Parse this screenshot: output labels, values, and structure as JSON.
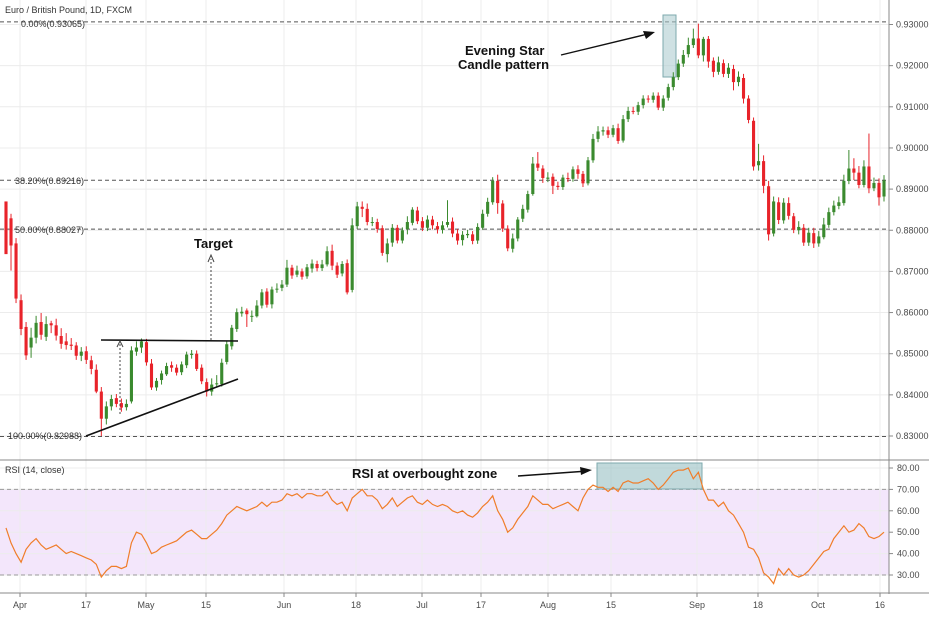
{
  "chart_data": [
    {
      "type": "candlestick",
      "title": "Euro / British Pound, 1D, FXCM",
      "x_tick_labels": [
        "Apr",
        "17",
        "May",
        "15",
        "Jun",
        "18",
        "Jul",
        "17",
        "Aug",
        "15",
        "Sep",
        "18",
        "Oct",
        "16"
      ],
      "y_tick_labels": [
        "0.93000",
        "0.92000",
        "0.91000",
        "0.90000",
        "0.89000",
        "0.88000",
        "0.87000",
        "0.86000",
        "0.85000",
        "0.84000",
        "0.83000"
      ],
      "ylim": [
        0.8272,
        0.9345
      ],
      "grid": true,
      "up_color": "#3a8a2e",
      "down_color": "#e8232a",
      "fib_levels": [
        {
          "label": "0.00%(0.93065)",
          "value": 0.93065
        },
        {
          "label": "38.20%(0.89216)",
          "value": 0.89216
        },
        {
          "label": "50.00%(0.88027)",
          "value": 0.88027
        },
        {
          "label": "100.00%(0.82988)",
          "value": 0.82988
        }
      ],
      "annotations": {
        "evening_star": "Evening Star\nCandle pattern",
        "target": "Target"
      },
      "candles": [
        [
          0.887,
          0.8742,
          0.887,
          0.8818
        ],
        [
          0.8829,
          0.8763,
          0.884,
          0.8702
        ],
        [
          0.8768,
          0.8634,
          0.8781,
          0.8623
        ],
        [
          0.863,
          0.856,
          0.8644,
          0.8545
        ],
        [
          0.8565,
          0.8496,
          0.8577,
          0.8485
        ],
        [
          0.8515,
          0.8539,
          0.8563,
          0.849
        ],
        [
          0.8539,
          0.8575,
          0.8592,
          0.8525
        ],
        [
          0.8577,
          0.8546,
          0.8599,
          0.8534
        ],
        [
          0.8541,
          0.8572,
          0.8591,
          0.8531
        ],
        [
          0.8574,
          0.8569,
          0.858,
          0.855
        ],
        [
          0.8569,
          0.8544,
          0.8585,
          0.8532
        ],
        [
          0.8543,
          0.8524,
          0.8562,
          0.8512
        ],
        [
          0.853,
          0.8521,
          0.855,
          0.851
        ],
        [
          0.8522,
          0.8519,
          0.8538,
          0.8509
        ],
        [
          0.852,
          0.8495,
          0.8528,
          0.8485
        ],
        [
          0.8495,
          0.8505,
          0.8516,
          0.8482
        ],
        [
          0.8506,
          0.8485,
          0.8518,
          0.8475
        ],
        [
          0.8484,
          0.8463,
          0.8495,
          0.845
        ],
        [
          0.8461,
          0.8408,
          0.8474,
          0.8404
        ],
        [
          0.8408,
          0.8342,
          0.8419,
          0.83
        ],
        [
          0.8342,
          0.8372,
          0.8384,
          0.8328
        ],
        [
          0.8372,
          0.839,
          0.84,
          0.8362
        ],
        [
          0.8392,
          0.8378,
          0.8402,
          0.837
        ],
        [
          0.838,
          0.8369,
          0.8391,
          0.8359
        ],
        [
          0.837,
          0.8378,
          0.8389,
          0.8362
        ],
        [
          0.8384,
          0.8508,
          0.8518,
          0.8379
        ],
        [
          0.8505,
          0.8515,
          0.853,
          0.8495
        ],
        [
          0.8515,
          0.853,
          0.8537,
          0.8502
        ],
        [
          0.8528,
          0.8479,
          0.8536,
          0.8471
        ],
        [
          0.8476,
          0.8418,
          0.8487,
          0.8412
        ],
        [
          0.8418,
          0.8434,
          0.8441,
          0.841
        ],
        [
          0.8436,
          0.8452,
          0.8459,
          0.8425
        ],
        [
          0.845,
          0.847,
          0.8478,
          0.8446
        ],
        [
          0.8472,
          0.8466,
          0.8481,
          0.8456
        ],
        [
          0.8466,
          0.8454,
          0.8474,
          0.8447
        ],
        [
          0.8455,
          0.8474,
          0.8481,
          0.8448
        ],
        [
          0.8472,
          0.8498,
          0.8505,
          0.8465
        ],
        [
          0.8497,
          0.85,
          0.8509,
          0.8488
        ],
        [
          0.85,
          0.8463,
          0.8508,
          0.8458
        ],
        [
          0.8466,
          0.8433,
          0.8474,
          0.8426
        ],
        [
          0.8431,
          0.8408,
          0.844,
          0.8396
        ],
        [
          0.8408,
          0.8425,
          0.844,
          0.8398
        ],
        [
          0.8426,
          0.8428,
          0.8448,
          0.842
        ],
        [
          0.8426,
          0.8478,
          0.8488,
          0.842
        ],
        [
          0.848,
          0.8523,
          0.853,
          0.8474
        ],
        [
          0.8518,
          0.8563,
          0.857,
          0.851
        ],
        [
          0.856,
          0.8601,
          0.861,
          0.8553
        ],
        [
          0.8598,
          0.8602,
          0.8614,
          0.859
        ],
        [
          0.8605,
          0.8596,
          0.861,
          0.8565
        ],
        [
          0.8592,
          0.8592,
          0.8605,
          0.8577
        ],
        [
          0.8591,
          0.8617,
          0.863,
          0.8588
        ],
        [
          0.8617,
          0.8649,
          0.8657,
          0.861
        ],
        [
          0.8651,
          0.8619,
          0.8659,
          0.8612
        ],
        [
          0.862,
          0.8656,
          0.8663,
          0.861
        ],
        [
          0.8656,
          0.8658,
          0.8671,
          0.8648
        ],
        [
          0.866,
          0.8668,
          0.8679,
          0.8652
        ],
        [
          0.8668,
          0.8709,
          0.8728,
          0.8662
        ],
        [
          0.8709,
          0.869,
          0.8716,
          0.8682
        ],
        [
          0.8692,
          0.8702,
          0.8714,
          0.8686
        ],
        [
          0.87,
          0.8687,
          0.8707,
          0.868
        ],
        [
          0.8688,
          0.871,
          0.8718,
          0.8682
        ],
        [
          0.8707,
          0.8719,
          0.8729,
          0.8697
        ],
        [
          0.8718,
          0.8708,
          0.8726,
          0.87
        ],
        [
          0.8708,
          0.8717,
          0.8728,
          0.8701
        ],
        [
          0.8717,
          0.8749,
          0.8761,
          0.8712
        ],
        [
          0.875,
          0.8714,
          0.8765,
          0.8703
        ],
        [
          0.8714,
          0.8692,
          0.8722,
          0.8684
        ],
        [
          0.8695,
          0.8718,
          0.8725,
          0.8688
        ],
        [
          0.872,
          0.8649,
          0.8729,
          0.8644
        ],
        [
          0.8655,
          0.8812,
          0.8829,
          0.8649
        ],
        [
          0.881,
          0.8858,
          0.8869,
          0.8803
        ],
        [
          0.8857,
          0.8852,
          0.887,
          0.8832
        ],
        [
          0.8852,
          0.882,
          0.8865,
          0.8812
        ],
        [
          0.8818,
          0.882,
          0.8832,
          0.881
        ],
        [
          0.882,
          0.8803,
          0.8828,
          0.8794
        ],
        [
          0.8805,
          0.8745,
          0.8812,
          0.8738
        ],
        [
          0.8742,
          0.8768,
          0.878,
          0.8722
        ],
        [
          0.877,
          0.8806,
          0.8815,
          0.876
        ],
        [
          0.8806,
          0.8775,
          0.8813,
          0.8768
        ],
        [
          0.8775,
          0.88,
          0.8807,
          0.8768
        ],
        [
          0.8803,
          0.882,
          0.8834,
          0.879
        ],
        [
          0.8818,
          0.885,
          0.8856,
          0.8812
        ],
        [
          0.8848,
          0.8822,
          0.8857,
          0.8815
        ],
        [
          0.8822,
          0.8806,
          0.8832,
          0.8798
        ],
        [
          0.8806,
          0.8826,
          0.8836,
          0.8798
        ],
        [
          0.8826,
          0.8812,
          0.8835,
          0.8802
        ],
        [
          0.881,
          0.8802,
          0.882,
          0.8792
        ],
        [
          0.8801,
          0.8812,
          0.8822,
          0.8792
        ],
        [
          0.8813,
          0.882,
          0.8873,
          0.8807
        ],
        [
          0.8821,
          0.8792,
          0.8831,
          0.8783
        ],
        [
          0.8792,
          0.8775,
          0.8803,
          0.8765
        ],
        [
          0.8776,
          0.8789,
          0.8798,
          0.8763
        ],
        [
          0.8788,
          0.8791,
          0.8801,
          0.8781
        ],
        [
          0.879,
          0.8774,
          0.8798,
          0.8766
        ],
        [
          0.8775,
          0.8808,
          0.8817,
          0.8767
        ],
        [
          0.8806,
          0.884,
          0.885,
          0.8801
        ],
        [
          0.884,
          0.8869,
          0.8879,
          0.8833
        ],
        [
          0.8868,
          0.892,
          0.8929,
          0.8862
        ],
        [
          0.892,
          0.8866,
          0.8935,
          0.884
        ],
        [
          0.8865,
          0.8804,
          0.8873,
          0.8796
        ],
        [
          0.8804,
          0.8756,
          0.8812,
          0.8749
        ],
        [
          0.8755,
          0.878,
          0.8792,
          0.8746
        ],
        [
          0.878,
          0.8826,
          0.8832,
          0.8773
        ],
        [
          0.8828,
          0.8852,
          0.8862,
          0.882
        ],
        [
          0.885,
          0.8888,
          0.8896,
          0.8843
        ],
        [
          0.8888,
          0.8962,
          0.8978,
          0.8884
        ],
        [
          0.8962,
          0.8952,
          0.899,
          0.8944
        ],
        [
          0.895,
          0.8927,
          0.8958,
          0.8915
        ],
        [
          0.8925,
          0.8928,
          0.8941,
          0.8917
        ],
        [
          0.893,
          0.8908,
          0.8938,
          0.8888
        ],
        [
          0.8908,
          0.8905,
          0.8918,
          0.8898
        ],
        [
          0.8905,
          0.8928,
          0.8935,
          0.8898
        ],
        [
          0.8927,
          0.8925,
          0.894,
          0.8917
        ],
        [
          0.8925,
          0.8948,
          0.8955,
          0.8918
        ],
        [
          0.8948,
          0.8937,
          0.8958,
          0.8925
        ],
        [
          0.8937,
          0.8914,
          0.8944,
          0.8905
        ],
        [
          0.8914,
          0.897,
          0.8978,
          0.8909
        ],
        [
          0.897,
          0.9022,
          0.9034,
          0.8964
        ],
        [
          0.9022,
          0.904,
          0.9053,
          0.9014
        ],
        [
          0.904,
          0.9043,
          0.9052,
          0.903
        ],
        [
          0.9043,
          0.9032,
          0.9052,
          0.9024
        ],
        [
          0.9032,
          0.9048,
          0.9056,
          0.9026
        ],
        [
          0.9048,
          0.9017,
          0.9059,
          0.901
        ],
        [
          0.9018,
          0.907,
          0.908,
          0.9013
        ],
        [
          0.907,
          0.909,
          0.91,
          0.9063
        ],
        [
          0.909,
          0.9088,
          0.91,
          0.9082
        ],
        [
          0.9088,
          0.9104,
          0.9112,
          0.908
        ],
        [
          0.9104,
          0.912,
          0.9128,
          0.9096
        ],
        [
          0.912,
          0.9118,
          0.9128,
          0.911
        ],
        [
          0.9117,
          0.9127,
          0.9135,
          0.911
        ],
        [
          0.9127,
          0.9098,
          0.9135,
          0.9092
        ],
        [
          0.9098,
          0.912,
          0.9128,
          0.909
        ],
        [
          0.9122,
          0.9148,
          0.9156,
          0.9115
        ],
        [
          0.9148,
          0.9172,
          0.9184,
          0.914
        ],
        [
          0.9172,
          0.9205,
          0.9215,
          0.9165
        ],
        [
          0.9205,
          0.9226,
          0.9238,
          0.9197
        ],
        [
          0.9228,
          0.925,
          0.9268,
          0.922
        ],
        [
          0.925,
          0.9266,
          0.929,
          0.9243
        ],
        [
          0.9266,
          0.9225,
          0.9302,
          0.9218
        ],
        [
          0.9225,
          0.9265,
          0.927,
          0.921
        ],
        [
          0.9265,
          0.921,
          0.9272,
          0.9195
        ],
        [
          0.9212,
          0.9185,
          0.922,
          0.9172
        ],
        [
          0.9185,
          0.9208,
          0.9222,
          0.9178
        ],
        [
          0.9206,
          0.918,
          0.9215,
          0.9172
        ],
        [
          0.918,
          0.9195,
          0.9206,
          0.917
        ],
        [
          0.9192,
          0.916,
          0.9202,
          0.914
        ],
        [
          0.916,
          0.9173,
          0.9186,
          0.915
        ],
        [
          0.917,
          0.912,
          0.918,
          0.9108
        ],
        [
          0.912,
          0.9068,
          0.9128,
          0.906
        ],
        [
          0.9066,
          0.8955,
          0.9074,
          0.8945
        ],
        [
          0.8958,
          0.8968,
          0.901,
          0.8945
        ],
        [
          0.8968,
          0.8908,
          0.8982,
          0.889
        ],
        [
          0.8907,
          0.879,
          0.892,
          0.8775
        ],
        [
          0.8792,
          0.887,
          0.8882,
          0.8785
        ],
        [
          0.8868,
          0.8825,
          0.888,
          0.8815
        ],
        [
          0.8824,
          0.8867,
          0.8878,
          0.8816
        ],
        [
          0.8866,
          0.8835,
          0.888,
          0.8826
        ],
        [
          0.8834,
          0.8801,
          0.8842,
          0.8793
        ],
        [
          0.88,
          0.8808,
          0.8822,
          0.879
        ],
        [
          0.8806,
          0.877,
          0.8815,
          0.8762
        ],
        [
          0.877,
          0.8794,
          0.8806,
          0.8762
        ],
        [
          0.8793,
          0.8768,
          0.8806,
          0.8757
        ],
        [
          0.8768,
          0.8785,
          0.8798,
          0.876
        ],
        [
          0.8783,
          0.8814,
          0.883,
          0.8778
        ],
        [
          0.8813,
          0.8844,
          0.8855,
          0.8806
        ],
        [
          0.8844,
          0.886,
          0.8872,
          0.8836
        ],
        [
          0.8859,
          0.8868,
          0.8882,
          0.8851
        ],
        [
          0.8866,
          0.892,
          0.8935,
          0.886
        ],
        [
          0.892,
          0.895,
          0.8995,
          0.8912
        ],
        [
          0.895,
          0.894,
          0.8975,
          0.8922
        ],
        [
          0.894,
          0.891,
          0.8956,
          0.8902
        ],
        [
          0.891,
          0.8955,
          0.897,
          0.8904
        ],
        [
          0.8955,
          0.8902,
          0.9035,
          0.889
        ],
        [
          0.8902,
          0.8915,
          0.8928,
          0.8895
        ],
        [
          0.8915,
          0.888,
          0.8926,
          0.886
        ],
        [
          0.8882,
          0.8921,
          0.8934,
          0.887
        ]
      ]
    },
    {
      "type": "line",
      "title": "RSI (14, close)",
      "y_tick_labels": [
        "80.00",
        "70.00",
        "60.00",
        "50.00",
        "40.00",
        "30.00"
      ],
      "ylim": [
        20.5,
        82.5
      ],
      "overbought": 70,
      "oversold": 30,
      "zone_color": "#f3e6fb",
      "line_color": "#f07d2a",
      "annotation": "RSI at overbought zone",
      "values": [
        52,
        45,
        40,
        36,
        42,
        45,
        47,
        44,
        42,
        43,
        44,
        42,
        40,
        41,
        40,
        39,
        38,
        37,
        35,
        29,
        32,
        34,
        34,
        33,
        34,
        45,
        50,
        49,
        45,
        40,
        41,
        43,
        44,
        45,
        46,
        48,
        50,
        51,
        49,
        47,
        47,
        49,
        51,
        54,
        58,
        60,
        62,
        61,
        60,
        61,
        62,
        64,
        62,
        64,
        64,
        65,
        68,
        67,
        68,
        66,
        68,
        68,
        67,
        67,
        69,
        65,
        63,
        64,
        60,
        66,
        68,
        70,
        67,
        67,
        65,
        61,
        63,
        66,
        62,
        64,
        66,
        67,
        64,
        63,
        65,
        63,
        62,
        63,
        62,
        60,
        59,
        60,
        58,
        57,
        59,
        62,
        64,
        67,
        60,
        56,
        50,
        52,
        56,
        59,
        62,
        67,
        65,
        63,
        63,
        61,
        62,
        63,
        64,
        62,
        60,
        66,
        70,
        72,
        71,
        71,
        69,
        71,
        69,
        73,
        74,
        73,
        73,
        74,
        75,
        73,
        70,
        72,
        75,
        78,
        79,
        79,
        80,
        75,
        78,
        70,
        65,
        65,
        62,
        64,
        60,
        58,
        54,
        50,
        43,
        42,
        38,
        31,
        29,
        26,
        33,
        30,
        33,
        30,
        29,
        30,
        32,
        35,
        38,
        41,
        42,
        47,
        50,
        53,
        50,
        51,
        54,
        52,
        48,
        47,
        48,
        50
      ]
    }
  ]
}
